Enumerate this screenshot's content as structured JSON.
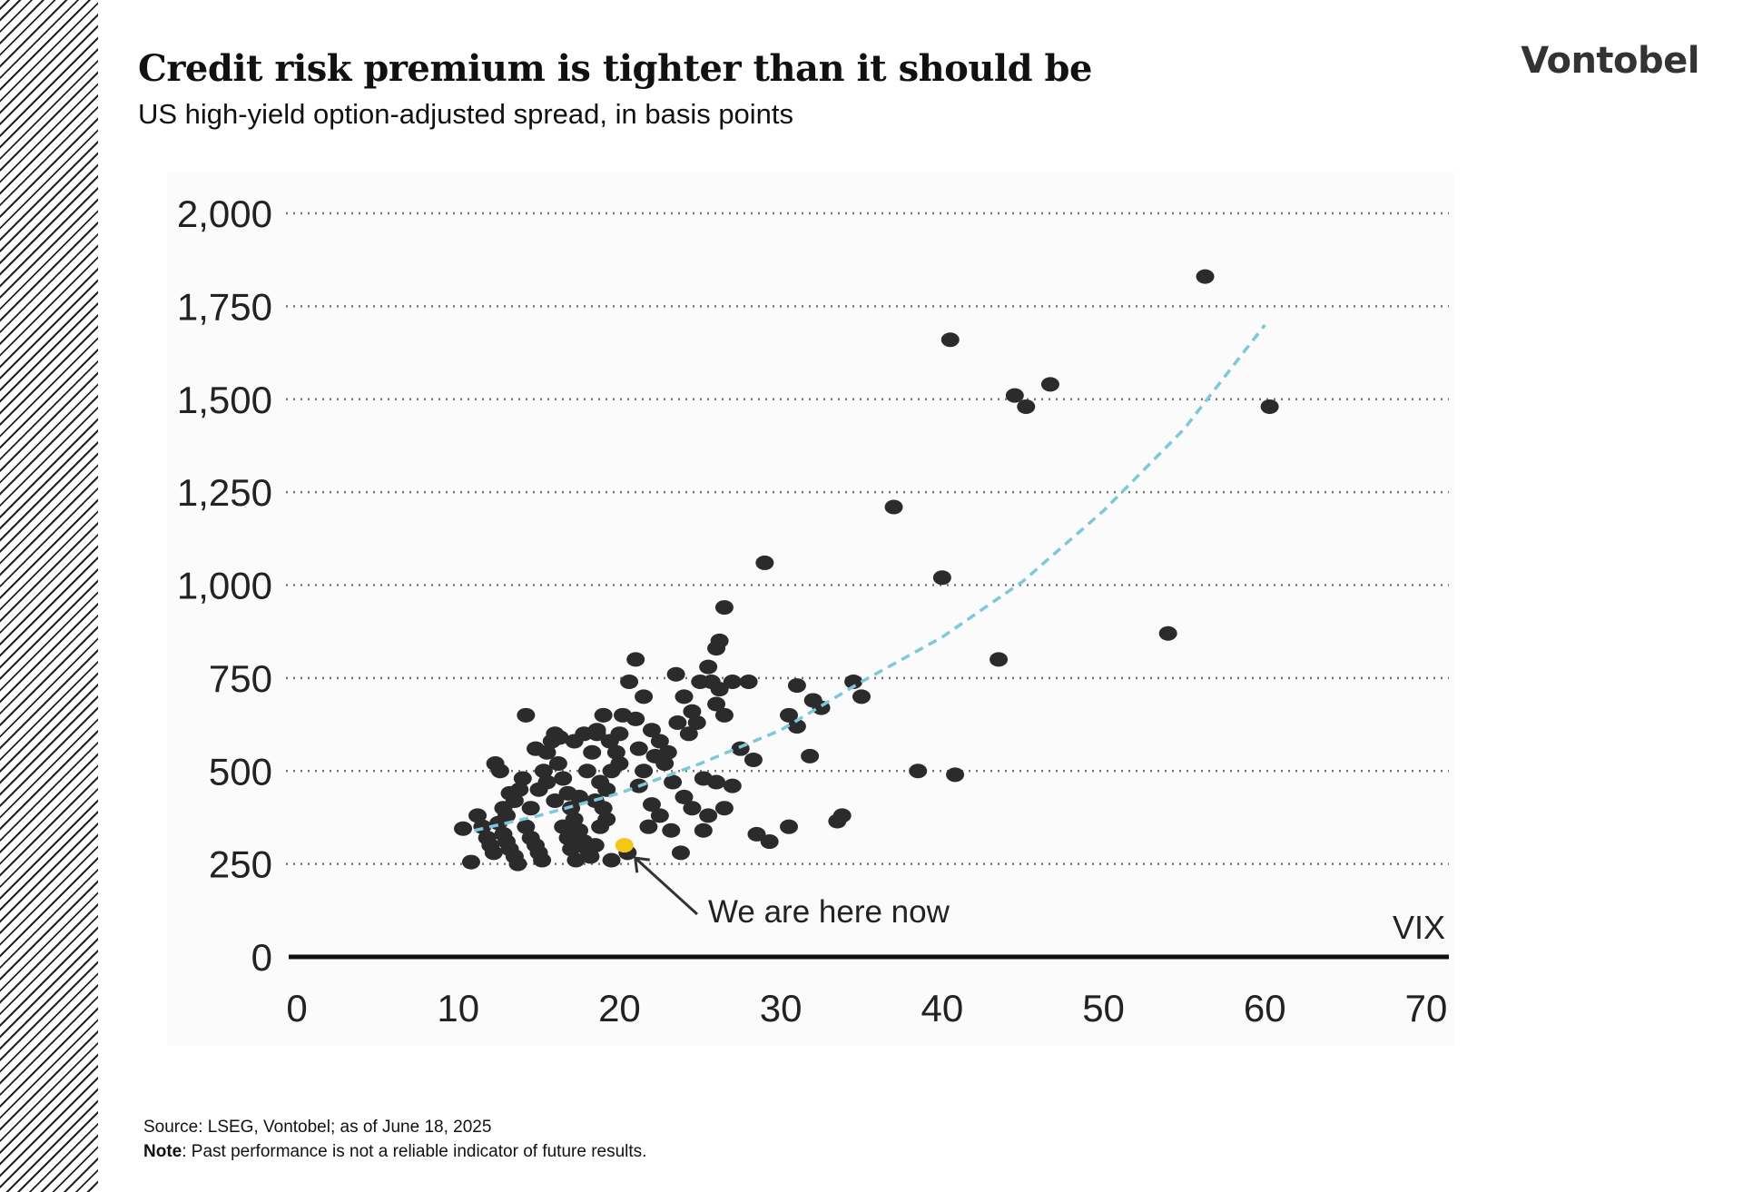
{
  "header": {
    "title": "Credit risk premium is tighter than it should be",
    "subtitle": "US high-yield option-adjusted spread, in basis points",
    "logo": "Vontobel"
  },
  "footer": {
    "source": "Source: LSEG, Vontobel; as of June 18, 2025",
    "note_label": "Note",
    "note_text": ": Past performance is not a reliable indicator of future results."
  },
  "colors": {
    "points": "#2b2b2b",
    "highlight": "#f5c518",
    "trend": "#7ec8dc",
    "grid": "#777777"
  },
  "chart_data": {
    "type": "scatter",
    "xlabel": "VIX",
    "ylabel": "",
    "xlim": [
      0,
      70
    ],
    "ylim": [
      0,
      2000
    ],
    "x_ticks": [
      "0",
      "10",
      "20",
      "30",
      "40",
      "50",
      "60",
      "70"
    ],
    "y_ticks": [
      "0",
      "250",
      "500",
      "750",
      "1,000",
      "1,250",
      "1,500",
      "1,750",
      "2,000"
    ],
    "grid": "horizontal dotted",
    "annotation": {
      "text": "We are here now",
      "x": 20.3,
      "y": 300
    },
    "current_point": {
      "x": 20.3,
      "y": 300
    },
    "trend_line": {
      "style": "dashed",
      "points": [
        [
          11,
          340
        ],
        [
          15,
          380
        ],
        [
          20,
          440
        ],
        [
          25,
          520
        ],
        [
          30,
          610
        ],
        [
          35,
          740
        ],
        [
          40,
          860
        ],
        [
          45,
          1010
        ],
        [
          50,
          1200
        ],
        [
          55,
          1420
        ],
        [
          60,
          1700
        ]
      ]
    },
    "series": [
      {
        "points": [
          [
            10.3,
            345
          ],
          [
            10.8,
            255
          ],
          [
            11.2,
            380
          ],
          [
            11.5,
            350
          ],
          [
            11.8,
            320
          ],
          [
            12,
            300
          ],
          [
            12.2,
            280
          ],
          [
            12.5,
            360
          ],
          [
            12.8,
            330
          ],
          [
            13,
            310
          ],
          [
            13.2,
            290
          ],
          [
            13.5,
            270
          ],
          [
            13.7,
            250
          ],
          [
            13,
            380
          ],
          [
            13.5,
            420
          ],
          [
            13.8,
            450
          ],
          [
            14,
            480
          ],
          [
            14.2,
            350
          ],
          [
            14.5,
            320
          ],
          [
            14.8,
            300
          ],
          [
            15,
            280
          ],
          [
            15.2,
            260
          ],
          [
            14.5,
            400
          ],
          [
            15,
            450
          ],
          [
            15.3,
            500
          ],
          [
            15.5,
            550
          ],
          [
            15.8,
            580
          ],
          [
            16,
            600
          ],
          [
            16.2,
            520
          ],
          [
            16.5,
            480
          ],
          [
            16.8,
            440
          ],
          [
            17,
            400
          ],
          [
            17.2,
            370
          ],
          [
            17.5,
            340
          ],
          [
            17.8,
            310
          ],
          [
            18,
            290
          ],
          [
            18.2,
            270
          ],
          [
            16.5,
            350
          ],
          [
            16.8,
            320
          ],
          [
            17,
            290
          ],
          [
            17.3,
            260
          ],
          [
            18.5,
            300
          ],
          [
            18.8,
            350
          ],
          [
            19,
            400
          ],
          [
            19.2,
            450
          ],
          [
            19.5,
            500
          ],
          [
            19.8,
            550
          ],
          [
            20,
            600
          ],
          [
            18,
            500
          ],
          [
            18.3,
            550
          ],
          [
            18.6,
            600
          ],
          [
            19,
            650
          ],
          [
            20.2,
            650
          ],
          [
            20.6,
            740
          ],
          [
            21,
            800
          ],
          [
            21,
            640
          ],
          [
            21.5,
            700
          ],
          [
            22,
            610
          ],
          [
            22.5,
            580
          ],
          [
            23,
            550
          ],
          [
            23.5,
            760
          ],
          [
            24,
            700
          ],
          [
            24.5,
            660
          ],
          [
            25,
            740
          ],
          [
            25.5,
            780
          ],
          [
            26,
            830
          ],
          [
            26.2,
            850
          ],
          [
            26.5,
            940
          ],
          [
            26,
            680
          ],
          [
            26.5,
            650
          ],
          [
            27,
            740
          ],
          [
            27.5,
            560
          ],
          [
            28,
            740
          ],
          [
            28.3,
            530
          ],
          [
            29,
            1060
          ],
          [
            28.5,
            330
          ],
          [
            29.3,
            310
          ],
          [
            30.5,
            650
          ],
          [
            31,
            730
          ],
          [
            31,
            620
          ],
          [
            32,
            690
          ],
          [
            32.5,
            670
          ],
          [
            31.8,
            540
          ],
          [
            30.5,
            350
          ],
          [
            33.5,
            365
          ],
          [
            33.8,
            380
          ],
          [
            34.5,
            740
          ],
          [
            35,
            700
          ],
          [
            37,
            1210
          ],
          [
            38.5,
            500
          ],
          [
            40,
            1020
          ],
          [
            40.5,
            1660
          ],
          [
            40.8,
            490
          ],
          [
            43.5,
            800
          ],
          [
            44.5,
            1510
          ],
          [
            45.2,
            1480
          ],
          [
            46.7,
            1540
          ],
          [
            54,
            870
          ],
          [
            56.3,
            1830
          ],
          [
            60.3,
            1480
          ],
          [
            12.3,
            520
          ],
          [
            12.6,
            500
          ],
          [
            14.2,
            650
          ],
          [
            14.8,
            560
          ],
          [
            16.3,
            590
          ],
          [
            17.2,
            580
          ],
          [
            17.8,
            600
          ],
          [
            18.6,
            610
          ],
          [
            19.4,
            580
          ],
          [
            20,
            520
          ],
          [
            21.2,
            560
          ],
          [
            21.5,
            500
          ],
          [
            22.2,
            540
          ],
          [
            22.8,
            520
          ],
          [
            23.3,
            470
          ],
          [
            24,
            430
          ],
          [
            24.5,
            400
          ],
          [
            25.2,
            480
          ],
          [
            25.5,
            380
          ],
          [
            26,
            470
          ],
          [
            26.5,
            400
          ],
          [
            27,
            460
          ],
          [
            22,
            410
          ],
          [
            22.5,
            380
          ],
          [
            21.8,
            350
          ],
          [
            23.2,
            340
          ],
          [
            23.8,
            280
          ],
          [
            25.2,
            340
          ],
          [
            19.5,
            260
          ],
          [
            20.5,
            280
          ],
          [
            19.2,
            370
          ],
          [
            18.5,
            420
          ],
          [
            13.2,
            440
          ],
          [
            12.8,
            400
          ],
          [
            16,
            420
          ],
          [
            15.5,
            470
          ],
          [
            17.5,
            430
          ],
          [
            18.8,
            470
          ],
          [
            21.2,
            460
          ],
          [
            24.3,
            600
          ],
          [
            23.6,
            630
          ],
          [
            24.8,
            630
          ],
          [
            25.7,
            740
          ],
          [
            26.2,
            720
          ]
        ]
      }
    ]
  }
}
